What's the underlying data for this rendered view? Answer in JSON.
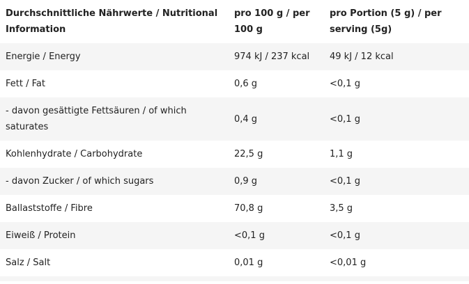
{
  "header": {
    "col1": "Durchschnittliche Nährwerte / Nutritional Information",
    "col2": "pro 100 g / per 100 g",
    "col3": "pro Portion (5 g) / per serving (5g)"
  },
  "rows": [
    {
      "label": "Energie / Energy",
      "per100": "974 kJ / 237 kcal",
      "perPortion": "49 kJ / 12 kcal"
    },
    {
      "label": "Fett / Fat",
      "per100": "0,6 g",
      "perPortion": "<0,1 g"
    },
    {
      "label": "- davon gesättigte Fettsäuren / of which saturates",
      "per100": "0,4 g",
      "perPortion": "<0,1 g"
    },
    {
      "label": "Kohlenhydrate / Carbohydrate",
      "per100": "22,5 g",
      "perPortion": "1,1 g"
    },
    {
      "label": "- davon Zucker / of which sugars",
      "per100": "0,9 g",
      "perPortion": "<0,1 g"
    },
    {
      "label": "Ballaststoffe / Fibre",
      "per100": "70,8 g",
      "perPortion": "3,5 g"
    },
    {
      "label": "Eiweiß / Protein",
      "per100": "<0,1 g",
      "perPortion": "<0,1 g"
    },
    {
      "label": "Salz / Salt",
      "per100": "0,01 g",
      "perPortion": "<0,01 g"
    }
  ],
  "colors": {
    "stripe": "#f5f5f5",
    "text": "#222222"
  }
}
